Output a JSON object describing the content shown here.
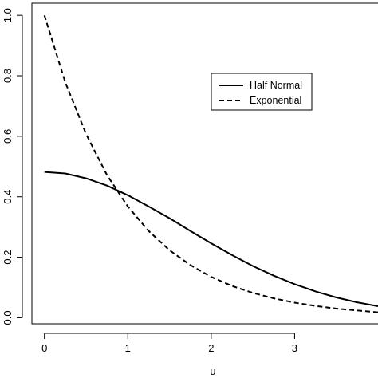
{
  "chart_data": {
    "type": "line",
    "title": "",
    "xlabel": "u",
    "ylabel": "",
    "xlim": [
      -0.15,
      4.0
    ],
    "ylim": [
      -0.02,
      1.04
    ],
    "x_ticks": [
      0,
      1,
      2,
      3
    ],
    "x_tick_labels": [
      "0",
      "1",
      "2",
      "3"
    ],
    "y_ticks": [
      0.0,
      0.2,
      0.4,
      0.6,
      0.8,
      1.0
    ],
    "y_tick_labels": [
      "0.0",
      "0.2",
      "0.4",
      "0.6",
      "0.8",
      "1.0"
    ],
    "grid": false,
    "legend_position": "upper-right",
    "series": [
      {
        "name": "Half Normal",
        "line_style": "solid",
        "color": "#000000",
        "x": [
          0,
          0.25,
          0.5,
          0.75,
          1.0,
          1.25,
          1.5,
          1.75,
          2.0,
          2.25,
          2.5,
          2.75,
          3.0,
          3.25,
          3.5,
          3.75,
          4.0
        ],
        "y": [
          0.482,
          0.477,
          0.461,
          0.437,
          0.405,
          0.368,
          0.329,
          0.287,
          0.246,
          0.207,
          0.171,
          0.139,
          0.111,
          0.087,
          0.067,
          0.051,
          0.038
        ]
      },
      {
        "name": "Exponential",
        "line_style": "dashed",
        "color": "#000000",
        "x": [
          0,
          0.25,
          0.5,
          0.75,
          1.0,
          1.25,
          1.5,
          1.75,
          2.0,
          2.25,
          2.5,
          2.75,
          3.0,
          3.25,
          3.5,
          3.75,
          4.0
        ],
        "y": [
          1.0,
          0.779,
          0.607,
          0.472,
          0.368,
          0.287,
          0.223,
          0.174,
          0.135,
          0.105,
          0.082,
          0.064,
          0.05,
          0.039,
          0.03,
          0.024,
          0.018
        ]
      }
    ]
  }
}
